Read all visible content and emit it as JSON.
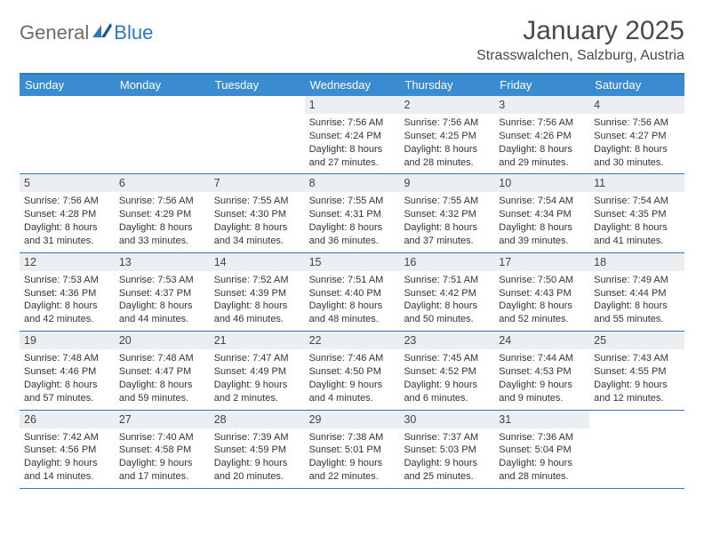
{
  "logo": {
    "general": "General",
    "blue": "Blue"
  },
  "title": "January 2025",
  "location": "Strasswalchen, Salzburg, Austria",
  "colors": {
    "accent": "#3b8bd1",
    "border": "#2e78c2",
    "dayHeaderBg": "#eceff2",
    "text": "#333333",
    "titleText": "#4a4a4a",
    "logoGray": "#6b6b6b"
  },
  "weekdays": [
    "Sunday",
    "Monday",
    "Tuesday",
    "Wednesday",
    "Thursday",
    "Friday",
    "Saturday"
  ],
  "weeks": [
    [
      {
        "empty": true
      },
      {
        "empty": true
      },
      {
        "empty": true
      },
      {
        "num": "1",
        "sunrise": "Sunrise: 7:56 AM",
        "sunset": "Sunset: 4:24 PM",
        "day1": "Daylight: 8 hours",
        "day2": "and 27 minutes."
      },
      {
        "num": "2",
        "sunrise": "Sunrise: 7:56 AM",
        "sunset": "Sunset: 4:25 PM",
        "day1": "Daylight: 8 hours",
        "day2": "and 28 minutes."
      },
      {
        "num": "3",
        "sunrise": "Sunrise: 7:56 AM",
        "sunset": "Sunset: 4:26 PM",
        "day1": "Daylight: 8 hours",
        "day2": "and 29 minutes."
      },
      {
        "num": "4",
        "sunrise": "Sunrise: 7:56 AM",
        "sunset": "Sunset: 4:27 PM",
        "day1": "Daylight: 8 hours",
        "day2": "and 30 minutes."
      }
    ],
    [
      {
        "num": "5",
        "sunrise": "Sunrise: 7:56 AM",
        "sunset": "Sunset: 4:28 PM",
        "day1": "Daylight: 8 hours",
        "day2": "and 31 minutes."
      },
      {
        "num": "6",
        "sunrise": "Sunrise: 7:56 AM",
        "sunset": "Sunset: 4:29 PM",
        "day1": "Daylight: 8 hours",
        "day2": "and 33 minutes."
      },
      {
        "num": "7",
        "sunrise": "Sunrise: 7:55 AM",
        "sunset": "Sunset: 4:30 PM",
        "day1": "Daylight: 8 hours",
        "day2": "and 34 minutes."
      },
      {
        "num": "8",
        "sunrise": "Sunrise: 7:55 AM",
        "sunset": "Sunset: 4:31 PM",
        "day1": "Daylight: 8 hours",
        "day2": "and 36 minutes."
      },
      {
        "num": "9",
        "sunrise": "Sunrise: 7:55 AM",
        "sunset": "Sunset: 4:32 PM",
        "day1": "Daylight: 8 hours",
        "day2": "and 37 minutes."
      },
      {
        "num": "10",
        "sunrise": "Sunrise: 7:54 AM",
        "sunset": "Sunset: 4:34 PM",
        "day1": "Daylight: 8 hours",
        "day2": "and 39 minutes."
      },
      {
        "num": "11",
        "sunrise": "Sunrise: 7:54 AM",
        "sunset": "Sunset: 4:35 PM",
        "day1": "Daylight: 8 hours",
        "day2": "and 41 minutes."
      }
    ],
    [
      {
        "num": "12",
        "sunrise": "Sunrise: 7:53 AM",
        "sunset": "Sunset: 4:36 PM",
        "day1": "Daylight: 8 hours",
        "day2": "and 42 minutes."
      },
      {
        "num": "13",
        "sunrise": "Sunrise: 7:53 AM",
        "sunset": "Sunset: 4:37 PM",
        "day1": "Daylight: 8 hours",
        "day2": "and 44 minutes."
      },
      {
        "num": "14",
        "sunrise": "Sunrise: 7:52 AM",
        "sunset": "Sunset: 4:39 PM",
        "day1": "Daylight: 8 hours",
        "day2": "and 46 minutes."
      },
      {
        "num": "15",
        "sunrise": "Sunrise: 7:51 AM",
        "sunset": "Sunset: 4:40 PM",
        "day1": "Daylight: 8 hours",
        "day2": "and 48 minutes."
      },
      {
        "num": "16",
        "sunrise": "Sunrise: 7:51 AM",
        "sunset": "Sunset: 4:42 PM",
        "day1": "Daylight: 8 hours",
        "day2": "and 50 minutes."
      },
      {
        "num": "17",
        "sunrise": "Sunrise: 7:50 AM",
        "sunset": "Sunset: 4:43 PM",
        "day1": "Daylight: 8 hours",
        "day2": "and 52 minutes."
      },
      {
        "num": "18",
        "sunrise": "Sunrise: 7:49 AM",
        "sunset": "Sunset: 4:44 PM",
        "day1": "Daylight: 8 hours",
        "day2": "and 55 minutes."
      }
    ],
    [
      {
        "num": "19",
        "sunrise": "Sunrise: 7:48 AM",
        "sunset": "Sunset: 4:46 PM",
        "day1": "Daylight: 8 hours",
        "day2": "and 57 minutes."
      },
      {
        "num": "20",
        "sunrise": "Sunrise: 7:48 AM",
        "sunset": "Sunset: 4:47 PM",
        "day1": "Daylight: 8 hours",
        "day2": "and 59 minutes."
      },
      {
        "num": "21",
        "sunrise": "Sunrise: 7:47 AM",
        "sunset": "Sunset: 4:49 PM",
        "day1": "Daylight: 9 hours",
        "day2": "and 2 minutes."
      },
      {
        "num": "22",
        "sunrise": "Sunrise: 7:46 AM",
        "sunset": "Sunset: 4:50 PM",
        "day1": "Daylight: 9 hours",
        "day2": "and 4 minutes."
      },
      {
        "num": "23",
        "sunrise": "Sunrise: 7:45 AM",
        "sunset": "Sunset: 4:52 PM",
        "day1": "Daylight: 9 hours",
        "day2": "and 6 minutes."
      },
      {
        "num": "24",
        "sunrise": "Sunrise: 7:44 AM",
        "sunset": "Sunset: 4:53 PM",
        "day1": "Daylight: 9 hours",
        "day2": "and 9 minutes."
      },
      {
        "num": "25",
        "sunrise": "Sunrise: 7:43 AM",
        "sunset": "Sunset: 4:55 PM",
        "day1": "Daylight: 9 hours",
        "day2": "and 12 minutes."
      }
    ],
    [
      {
        "num": "26",
        "sunrise": "Sunrise: 7:42 AM",
        "sunset": "Sunset: 4:56 PM",
        "day1": "Daylight: 9 hours",
        "day2": "and 14 minutes."
      },
      {
        "num": "27",
        "sunrise": "Sunrise: 7:40 AM",
        "sunset": "Sunset: 4:58 PM",
        "day1": "Daylight: 9 hours",
        "day2": "and 17 minutes."
      },
      {
        "num": "28",
        "sunrise": "Sunrise: 7:39 AM",
        "sunset": "Sunset: 4:59 PM",
        "day1": "Daylight: 9 hours",
        "day2": "and 20 minutes."
      },
      {
        "num": "29",
        "sunrise": "Sunrise: 7:38 AM",
        "sunset": "Sunset: 5:01 PM",
        "day1": "Daylight: 9 hours",
        "day2": "and 22 minutes."
      },
      {
        "num": "30",
        "sunrise": "Sunrise: 7:37 AM",
        "sunset": "Sunset: 5:03 PM",
        "day1": "Daylight: 9 hours",
        "day2": "and 25 minutes."
      },
      {
        "num": "31",
        "sunrise": "Sunrise: 7:36 AM",
        "sunset": "Sunset: 5:04 PM",
        "day1": "Daylight: 9 hours",
        "day2": "and 28 minutes."
      },
      {
        "empty": true
      }
    ]
  ]
}
